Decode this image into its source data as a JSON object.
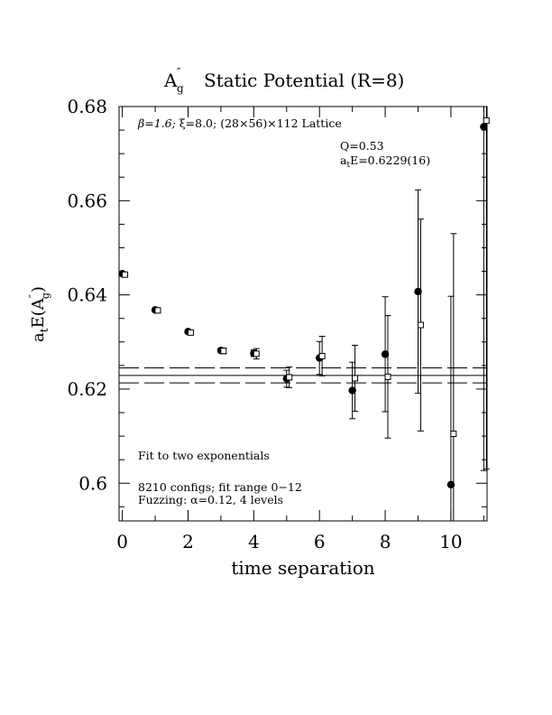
{
  "chart_data": {
    "type": "scatter",
    "title_main": "A",
    "title_sup": "″",
    "title_sub": "g",
    "title_rest": "Static Potential (R=8)",
    "xlabel": "time separation",
    "ylabel_pre": "a",
    "ylabel_t": "t",
    "ylabel_mid": "E(A",
    "ylabel_sup": "″",
    "ylabel_sub": "g",
    "ylabel_post": ")",
    "xlim": [
      -0.1,
      11.1
    ],
    "ylim": [
      0.592,
      0.68
    ],
    "xticks": [
      0,
      2,
      4,
      6,
      8,
      10
    ],
    "xtick_labels": [
      "0",
      "2",
      "4",
      "6",
      "8",
      "10"
    ],
    "yticks": [
      0.6,
      0.62,
      0.64,
      0.66,
      0.68
    ],
    "ytick_labels": [
      "0.6",
      "0.62",
      "0.64",
      "0.66",
      "0.68"
    ],
    "annotations": {
      "lattice_beta": "β=1.6; ",
      "lattice_xi": "ξ=8.0; (28×56)×112 Lattice",
      "q_value": "Q=0.53",
      "fit_a": "a",
      "fit_t": "t",
      "fit_e": "E=0.6229(16)",
      "fit_type": "Fit to two exponentials",
      "configs": "8210 configs; fit range 0−12",
      "fuzzing": "Fuzzing: α=0.12, 4 levels"
    },
    "fit": {
      "value": 0.6229,
      "band": [
        0.6213,
        0.6245
      ],
      "x_range": [
        -0.1,
        11.1
      ]
    },
    "series": [
      {
        "marker": "filled-circle",
        "points": [
          {
            "x": 0.0,
            "y": 0.6445,
            "err": 0.0003
          },
          {
            "x": 1.0,
            "y": 0.6368,
            "err": 0.0003
          },
          {
            "x": 2.0,
            "y": 0.6322,
            "err": 0.0004
          },
          {
            "x": 3.0,
            "y": 0.6282,
            "err": 0.0005
          },
          {
            "x": 4.0,
            "y": 0.6276,
            "err": 0.0007
          },
          {
            "x": 5.0,
            "y": 0.6222,
            "err": 0.0018
          },
          {
            "x": 6.0,
            "y": 0.6266,
            "err": 0.0035
          },
          {
            "x": 7.0,
            "y": 0.6197,
            "err": 0.006
          },
          {
            "x": 8.0,
            "y": 0.6274,
            "err": 0.0122
          },
          {
            "x": 9.0,
            "y": 0.6407,
            "err": 0.0216
          },
          {
            "x": 10.0,
            "y": 0.5997,
            "err": 0.04
          },
          {
            "x": 11.0,
            "y": 0.6757,
            "err": 0.073
          }
        ]
      },
      {
        "marker": "open-square",
        "points": [
          {
            "x": 0.08,
            "y": 0.6443,
            "err": 0.0003
          },
          {
            "x": 1.08,
            "y": 0.6367,
            "err": 0.0003
          },
          {
            "x": 2.08,
            "y": 0.632,
            "err": 0.0004
          },
          {
            "x": 3.08,
            "y": 0.6281,
            "err": 0.0006
          },
          {
            "x": 4.08,
            "y": 0.6275,
            "err": 0.0011
          },
          {
            "x": 5.08,
            "y": 0.6225,
            "err": 0.0022
          },
          {
            "x": 6.08,
            "y": 0.627,
            "err": 0.0042
          },
          {
            "x": 7.08,
            "y": 0.6223,
            "err": 0.007
          },
          {
            "x": 8.08,
            "y": 0.6226,
            "err": 0.013
          },
          {
            "x": 9.08,
            "y": 0.6336,
            "err": 0.0225
          },
          {
            "x": 10.08,
            "y": 0.6105,
            "err": 0.0425
          },
          {
            "x": 11.08,
            "y": 0.677,
            "err": 0.074
          }
        ]
      }
    ]
  }
}
